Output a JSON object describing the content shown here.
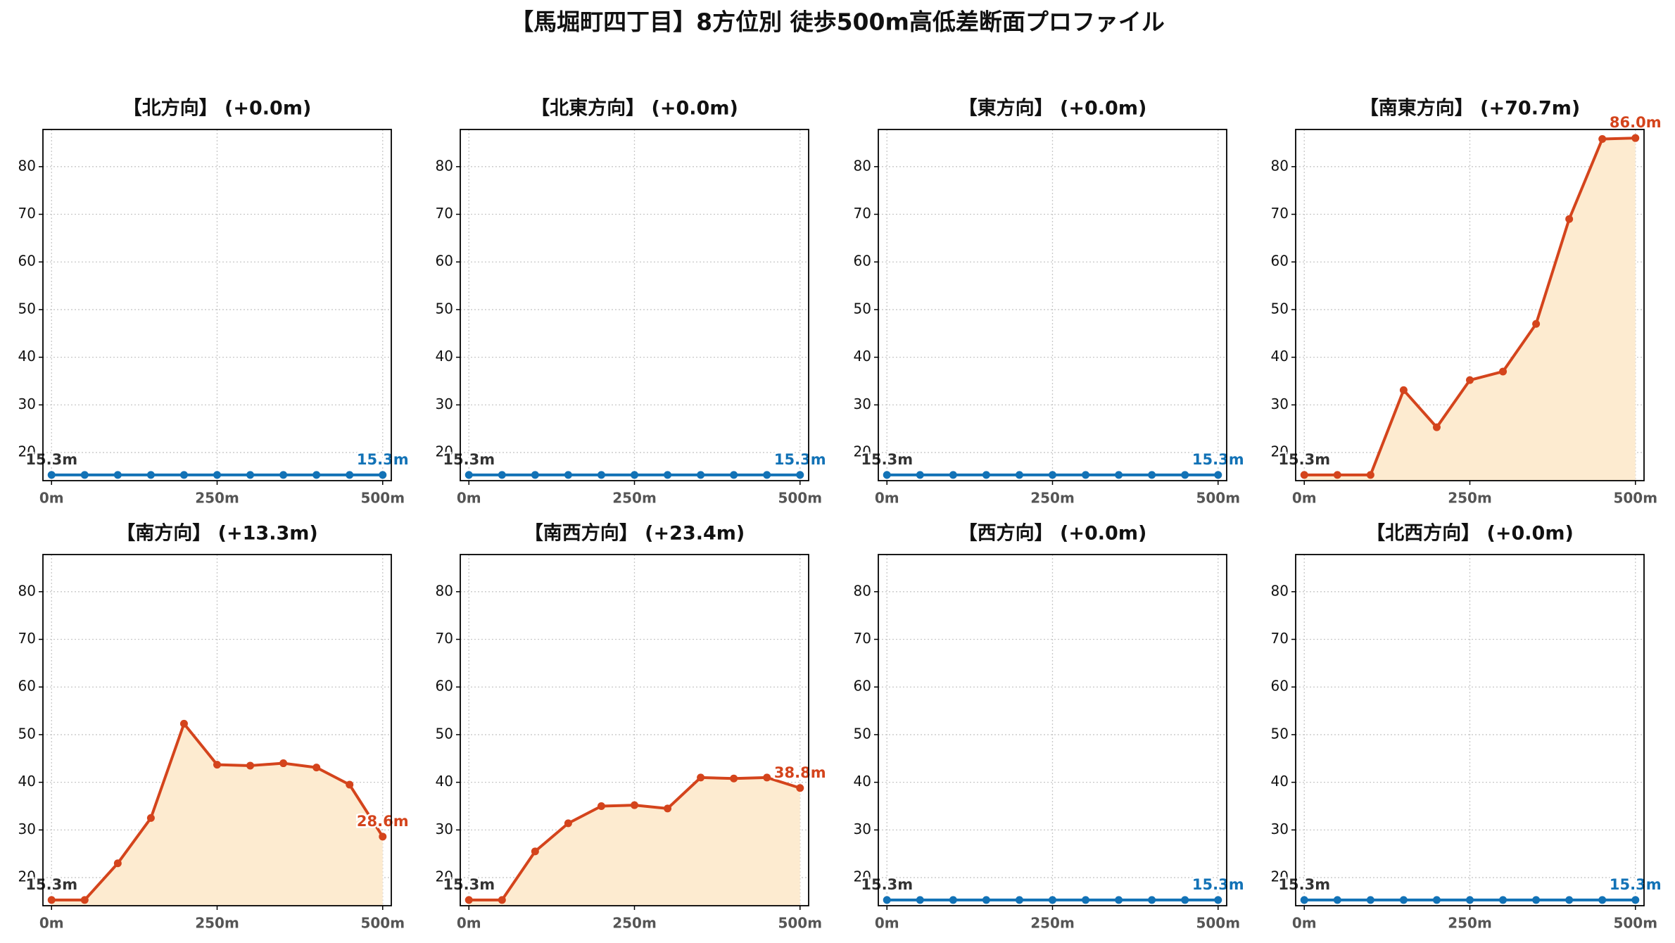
{
  "title": "【馬堀町四丁目】8方位別 徒歩500m高低差断面プロファイル",
  "chart_data": [
    {
      "type": "line",
      "title": "【北方向】 (+0.0m)",
      "x": [
        0,
        50,
        100,
        150,
        200,
        250,
        300,
        350,
        400,
        450,
        500
      ],
      "values": [
        15.3,
        15.3,
        15.3,
        15.3,
        15.3,
        15.3,
        15.3,
        15.3,
        15.3,
        15.3,
        15.3
      ],
      "value_labels": [
        "15.3m",
        null,
        null,
        null,
        null,
        null,
        null,
        null,
        null,
        null,
        "15.3m"
      ],
      "color": "#1272b6",
      "xlim": [
        -13,
        513
      ],
      "ylim": [
        14.1,
        87.8
      ],
      "xticks": [
        {
          "value": 0,
          "label": "0m"
        },
        {
          "value": 250,
          "label": "250m"
        },
        {
          "value": 500,
          "label": "500m"
        }
      ],
      "yticks": [
        20,
        30,
        40,
        50,
        60,
        70,
        80
      ],
      "grid": true
    },
    {
      "type": "line",
      "title": "【北東方向】 (+0.0m)",
      "x": [
        0,
        50,
        100,
        150,
        200,
        250,
        300,
        350,
        400,
        450,
        500
      ],
      "values": [
        15.3,
        15.3,
        15.3,
        15.3,
        15.3,
        15.3,
        15.3,
        15.3,
        15.3,
        15.3,
        15.3
      ],
      "value_labels": [
        "15.3m",
        null,
        null,
        null,
        null,
        null,
        null,
        null,
        null,
        null,
        "15.3m"
      ],
      "color": "#1272b6",
      "xlim": [
        -13,
        513
      ],
      "ylim": [
        14.1,
        87.8
      ],
      "xticks": [
        {
          "value": 0,
          "label": "0m"
        },
        {
          "value": 250,
          "label": "250m"
        },
        {
          "value": 500,
          "label": "500m"
        }
      ],
      "yticks": [
        20,
        30,
        40,
        50,
        60,
        70,
        80
      ],
      "grid": true
    },
    {
      "type": "line",
      "title": "【東方向】 (+0.0m)",
      "x": [
        0,
        50,
        100,
        150,
        200,
        250,
        300,
        350,
        400,
        450,
        500
      ],
      "values": [
        15.3,
        15.3,
        15.3,
        15.3,
        15.3,
        15.3,
        15.3,
        15.3,
        15.3,
        15.3,
        15.3
      ],
      "value_labels": [
        "15.3m",
        null,
        null,
        null,
        null,
        null,
        null,
        null,
        null,
        null,
        "15.3m"
      ],
      "color": "#1272b6",
      "xlim": [
        -13,
        513
      ],
      "ylim": [
        14.1,
        87.8
      ],
      "xticks": [
        {
          "value": 0,
          "label": "0m"
        },
        {
          "value": 250,
          "label": "250m"
        },
        {
          "value": 500,
          "label": "500m"
        }
      ],
      "yticks": [
        20,
        30,
        40,
        50,
        60,
        70,
        80
      ],
      "grid": true
    },
    {
      "type": "line",
      "title": "【南東方向】 (+70.7m)",
      "x": [
        0,
        50,
        100,
        150,
        200,
        250,
        300,
        350,
        400,
        450,
        500
      ],
      "values": [
        15.3,
        15.3,
        15.3,
        33.1,
        25.3,
        35.2,
        37.0,
        47.0,
        69.0,
        85.8,
        86.0
      ],
      "value_labels": [
        "15.3m",
        null,
        null,
        null,
        null,
        null,
        null,
        null,
        null,
        null,
        "86.0m"
      ],
      "color": "#d4441c",
      "area_color": "#fdebd0",
      "xlim": [
        -13,
        513
      ],
      "ylim": [
        14.1,
        87.8
      ],
      "xticks": [
        {
          "value": 0,
          "label": "0m"
        },
        {
          "value": 250,
          "label": "250m"
        },
        {
          "value": 500,
          "label": "500m"
        }
      ],
      "yticks": [
        20,
        30,
        40,
        50,
        60,
        70,
        80
      ],
      "grid": true
    },
    {
      "type": "line",
      "title": "【南方向】 (+13.3m)",
      "x": [
        0,
        50,
        100,
        150,
        200,
        250,
        300,
        350,
        400,
        450,
        500
      ],
      "values": [
        15.3,
        15.3,
        23.0,
        32.5,
        52.3,
        43.7,
        43.5,
        44.0,
        43.1,
        39.5,
        28.6
      ],
      "value_labels": [
        "15.3m",
        null,
        null,
        null,
        null,
        null,
        null,
        null,
        null,
        null,
        "28.6m"
      ],
      "color": "#d4441c",
      "area_color": "#fdebd0",
      "xlim": [
        -13,
        513
      ],
      "ylim": [
        14.1,
        87.8
      ],
      "xticks": [
        {
          "value": 0,
          "label": "0m"
        },
        {
          "value": 250,
          "label": "250m"
        },
        {
          "value": 500,
          "label": "500m"
        }
      ],
      "yticks": [
        20,
        30,
        40,
        50,
        60,
        70,
        80
      ],
      "grid": true
    },
    {
      "type": "line",
      "title": "【南西方向】 (+23.4m)",
      "x": [
        0,
        50,
        100,
        150,
        200,
        250,
        300,
        350,
        400,
        450,
        500
      ],
      "values": [
        15.3,
        15.3,
        25.5,
        31.4,
        35.0,
        35.2,
        34.5,
        41.0,
        40.8,
        41.0,
        38.8
      ],
      "value_labels": [
        "15.3m",
        null,
        null,
        null,
        null,
        null,
        null,
        null,
        null,
        null,
        "38.8m"
      ],
      "color": "#d4441c",
      "area_color": "#fdebd0",
      "xlim": [
        -13,
        513
      ],
      "ylim": [
        14.1,
        87.8
      ],
      "xticks": [
        {
          "value": 0,
          "label": "0m"
        },
        {
          "value": 250,
          "label": "250m"
        },
        {
          "value": 500,
          "label": "500m"
        }
      ],
      "yticks": [
        20,
        30,
        40,
        50,
        60,
        70,
        80
      ],
      "grid": true
    },
    {
      "type": "line",
      "title": "【西方向】 (+0.0m)",
      "x": [
        0,
        50,
        100,
        150,
        200,
        250,
        300,
        350,
        400,
        450,
        500
      ],
      "values": [
        15.3,
        15.3,
        15.3,
        15.3,
        15.3,
        15.3,
        15.3,
        15.3,
        15.3,
        15.3,
        15.3
      ],
      "value_labels": [
        "15.3m",
        null,
        null,
        null,
        null,
        null,
        null,
        null,
        null,
        null,
        "15.3m"
      ],
      "color": "#1272b6",
      "xlim": [
        -13,
        513
      ],
      "ylim": [
        14.1,
        87.8
      ],
      "xticks": [
        {
          "value": 0,
          "label": "0m"
        },
        {
          "value": 250,
          "label": "250m"
        },
        {
          "value": 500,
          "label": "500m"
        }
      ],
      "yticks": [
        20,
        30,
        40,
        50,
        60,
        70,
        80
      ],
      "grid": true
    },
    {
      "type": "line",
      "title": "【北西方向】 (+0.0m)",
      "x": [
        0,
        50,
        100,
        150,
        200,
        250,
        300,
        350,
        400,
        450,
        500
      ],
      "values": [
        15.3,
        15.3,
        15.3,
        15.3,
        15.3,
        15.3,
        15.3,
        15.3,
        15.3,
        15.3,
        15.3
      ],
      "value_labels": [
        "15.3m",
        null,
        null,
        null,
        null,
        null,
        null,
        null,
        null,
        null,
        "15.3m"
      ],
      "color": "#1272b6",
      "xlim": [
        -13,
        513
      ],
      "ylim": [
        14.1,
        87.8
      ],
      "xticks": [
        {
          "value": 0,
          "label": "0m"
        },
        {
          "value": 250,
          "label": "250m"
        },
        {
          "value": 500,
          "label": "500m"
        }
      ],
      "yticks": [
        20,
        30,
        40,
        50,
        60,
        70,
        80
      ],
      "grid": true
    }
  ]
}
